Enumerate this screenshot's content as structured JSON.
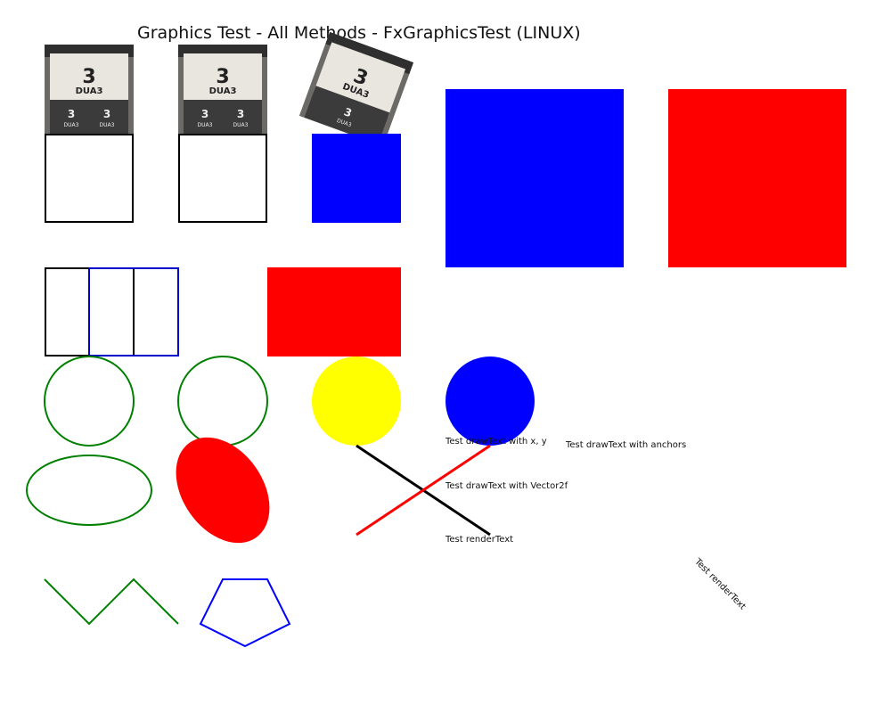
{
  "window": {
    "title": "Graphics Test - All Methods - FxGraphicsTest (LINUX)"
  },
  "images": {
    "logo_text": "DUA3",
    "logo_digit": "3"
  },
  "texts": {
    "draw_text_xy": "Test drawText with x, y",
    "draw_text_anchors": "Test drawText with anchors",
    "draw_text_vector": "Test drawText with Vector2f",
    "render_text": "Test renderText",
    "render_text_rotated": "Test renderText"
  },
  "colors": {
    "blue": "#0000ff",
    "red": "#ff0000",
    "green": "#008000",
    "yellow": "#ffff00",
    "black": "#000000"
  }
}
